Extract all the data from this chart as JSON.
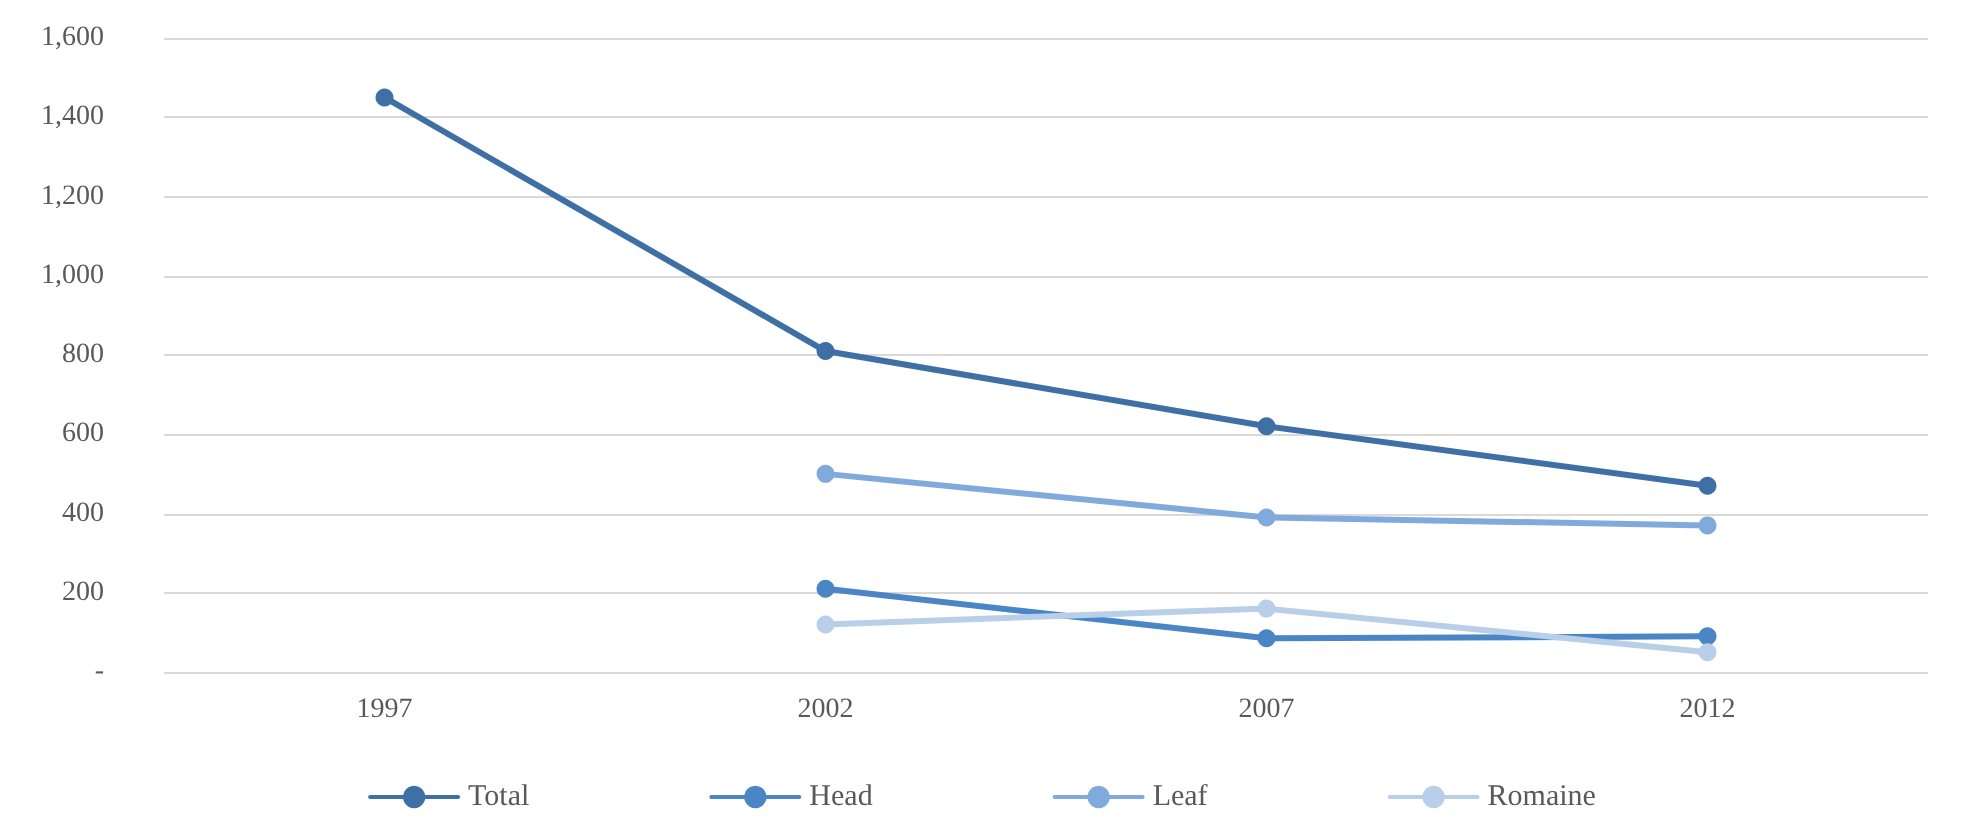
{
  "chart_data": {
    "type": "line",
    "categories": [
      "1997",
      "2002",
      "2007",
      "2012"
    ],
    "series": [
      {
        "name": "Total",
        "color": "#3e70a6",
        "values": [
          1450,
          810,
          620,
          470
        ]
      },
      {
        "name": "Head",
        "color": "#4a86c5",
        "values": [
          null,
          210,
          85,
          90
        ]
      },
      {
        "name": "Leaf",
        "color": "#80aadc",
        "values": [
          null,
          500,
          390,
          370
        ]
      },
      {
        "name": "Romaine",
        "color": "#b8cee9",
        "values": [
          null,
          120,
          160,
          50
        ]
      }
    ],
    "ylim": [
      0,
      1600
    ],
    "yticks": [
      {
        "value": 0,
        "label": "-"
      },
      200,
      400,
      600,
      800,
      {
        "value": 1000,
        "label": "1,000"
      },
      {
        "value": 1200,
        "label": "1,200"
      },
      {
        "value": 1400,
        "label": "1,400"
      },
      {
        "value": 1600,
        "label": "1,600"
      }
    ],
    "grid": "y",
    "legend": "bottom",
    "marker": "circle",
    "line_style": "solid"
  }
}
